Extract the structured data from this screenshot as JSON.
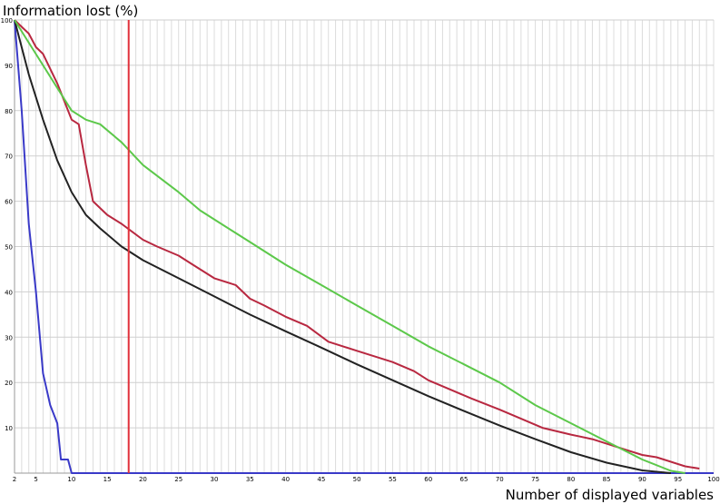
{
  "chart_data": {
    "type": "line",
    "ylabel": "Information lost (%)",
    "xlabel": "Number of displayed variables",
    "xlim": [
      2,
      100
    ],
    "ylim": [
      0,
      100
    ],
    "x_ticks": [
      2,
      5,
      10,
      15,
      20,
      25,
      30,
      35,
      40,
      45,
      50,
      55,
      60,
      65,
      70,
      75,
      80,
      85,
      90,
      95,
      100
    ],
    "y_ticks": [
      10,
      20,
      30,
      40,
      50,
      60,
      70,
      80,
      90,
      100
    ],
    "grid": true,
    "marker_line": {
      "x": 18,
      "color": "#e0303a"
    },
    "series": [
      {
        "color": "#3a3ac8",
        "points": [
          [
            2,
            100
          ],
          [
            3,
            80
          ],
          [
            4,
            55
          ],
          [
            5,
            40
          ],
          [
            6,
            22
          ],
          [
            7,
            15
          ],
          [
            8,
            11
          ],
          [
            8.5,
            3
          ],
          [
            9.5,
            3
          ],
          [
            10,
            0
          ],
          [
            100,
            0
          ]
        ]
      },
      {
        "color": "#222222",
        "points": [
          [
            2,
            100
          ],
          [
            4,
            88
          ],
          [
            6,
            78
          ],
          [
            8,
            69
          ],
          [
            10,
            62
          ],
          [
            12,
            57
          ],
          [
            14,
            54
          ],
          [
            17,
            50
          ],
          [
            20,
            47
          ],
          [
            25,
            43
          ],
          [
            30,
            39
          ],
          [
            35,
            35
          ],
          [
            40,
            31.3
          ],
          [
            45,
            27.7
          ],
          [
            50,
            24
          ],
          [
            55,
            20.5
          ],
          [
            60,
            17
          ],
          [
            65,
            13.7
          ],
          [
            70,
            10.5
          ],
          [
            75,
            7.5
          ],
          [
            80,
            4.6
          ],
          [
            85,
            2.3
          ],
          [
            90,
            0.6
          ],
          [
            94,
            0
          ]
        ]
      },
      {
        "color": "#b82840",
        "points": [
          [
            2,
            100
          ],
          [
            4,
            97
          ],
          [
            5,
            94
          ],
          [
            6,
            92.5
          ],
          [
            8,
            86
          ],
          [
            9,
            82
          ],
          [
            10,
            78
          ],
          [
            11,
            77
          ],
          [
            12,
            68
          ],
          [
            13,
            60
          ],
          [
            15,
            57
          ],
          [
            17,
            55
          ],
          [
            20,
            51.5
          ],
          [
            22,
            50
          ],
          [
            25,
            48
          ],
          [
            27,
            46
          ],
          [
            30,
            43
          ],
          [
            33,
            41.5
          ],
          [
            35,
            38.5
          ],
          [
            37,
            37
          ],
          [
            40,
            34.5
          ],
          [
            43,
            32.5
          ],
          [
            46,
            29
          ],
          [
            50,
            27
          ],
          [
            55,
            24.5
          ],
          [
            58,
            22.5
          ],
          [
            60,
            20.5
          ],
          [
            63,
            18.5
          ],
          [
            66,
            16.5
          ],
          [
            70,
            14
          ],
          [
            73,
            12
          ],
          [
            76,
            10
          ],
          [
            80,
            8.5
          ],
          [
            83,
            7.5
          ],
          [
            86,
            6
          ],
          [
            88,
            5
          ],
          [
            90,
            4
          ],
          [
            92,
            3.5
          ],
          [
            94,
            2.5
          ],
          [
            96,
            1.5
          ],
          [
            98,
            1
          ]
        ]
      },
      {
        "color": "#5cc84a",
        "points": [
          [
            2,
            100
          ],
          [
            4,
            95
          ],
          [
            6,
            90
          ],
          [
            8,
            85
          ],
          [
            10,
            80
          ],
          [
            12,
            78
          ],
          [
            14,
            77
          ],
          [
            17,
            73
          ],
          [
            20,
            68
          ],
          [
            25,
            62
          ],
          [
            28,
            58
          ],
          [
            30,
            56
          ],
          [
            35,
            51
          ],
          [
            40,
            46
          ],
          [
            45,
            41.5
          ],
          [
            50,
            37
          ],
          [
            55,
            32.5
          ],
          [
            60,
            28
          ],
          [
            65,
            24
          ],
          [
            70,
            20
          ],
          [
            75,
            15
          ],
          [
            80,
            11
          ],
          [
            85,
            7
          ],
          [
            90,
            3
          ],
          [
            94,
            0.5
          ],
          [
            96,
            0
          ]
        ]
      }
    ]
  }
}
